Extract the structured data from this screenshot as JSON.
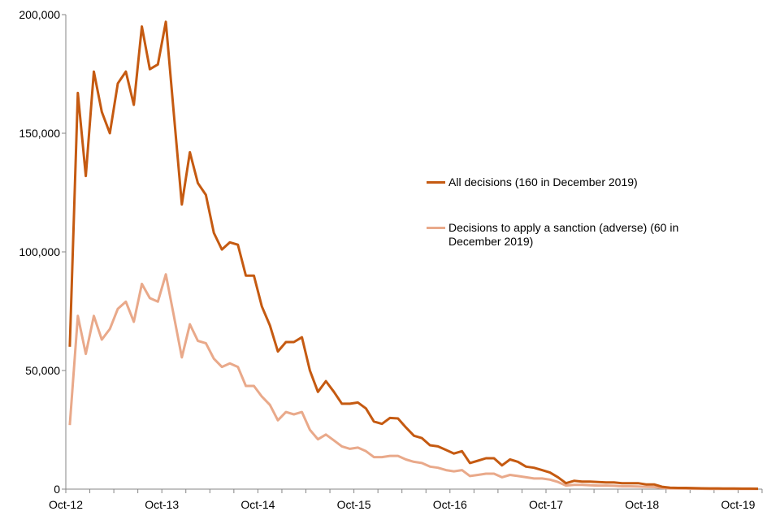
{
  "chart_data": {
    "type": "line",
    "title": "",
    "xlabel": "",
    "ylabel": "",
    "ylim": [
      0,
      200000
    ],
    "y_ticks": [
      0,
      50000,
      100000,
      150000,
      200000
    ],
    "y_tick_labels": [
      "0",
      "50,000",
      "100,000",
      "150,000",
      "200,000"
    ],
    "x_tick_labels": [
      "Oct-12",
      "Oct-13",
      "Oct-14",
      "Oct-15",
      "Oct-16",
      "Oct-17",
      "Oct-18",
      "Oct-19"
    ],
    "grid": false,
    "legend_placement": "center-right",
    "x": [
      "Oct-12",
      "Nov-12",
      "Dec-12",
      "Jan-13",
      "Feb-13",
      "Mar-13",
      "Apr-13",
      "May-13",
      "Jun-13",
      "Jul-13",
      "Aug-13",
      "Sep-13",
      "Oct-13",
      "Nov-13",
      "Dec-13",
      "Jan-14",
      "Feb-14",
      "Mar-14",
      "Apr-14",
      "May-14",
      "Jun-14",
      "Jul-14",
      "Aug-14",
      "Sep-14",
      "Oct-14",
      "Nov-14",
      "Dec-14",
      "Jan-15",
      "Feb-15",
      "Mar-15",
      "Apr-15",
      "May-15",
      "Jun-15",
      "Jul-15",
      "Aug-15",
      "Sep-15",
      "Oct-15",
      "Nov-15",
      "Dec-15",
      "Jan-16",
      "Feb-16",
      "Mar-16",
      "Apr-16",
      "May-16",
      "Jun-16",
      "Jul-16",
      "Aug-16",
      "Sep-16",
      "Oct-16",
      "Nov-16",
      "Dec-16",
      "Jan-17",
      "Feb-17",
      "Mar-17",
      "Apr-17",
      "May-17",
      "Jun-17",
      "Jul-17",
      "Aug-17",
      "Sep-17",
      "Oct-17",
      "Nov-17",
      "Dec-17",
      "Jan-18",
      "Feb-18",
      "Mar-18",
      "Apr-18",
      "May-18",
      "Jun-18",
      "Jul-18",
      "Aug-18",
      "Sep-18",
      "Oct-18",
      "Nov-18",
      "Dec-18",
      "Jan-19",
      "Feb-19",
      "Mar-19",
      "Apr-19",
      "May-19",
      "Jun-19",
      "Jul-19",
      "Aug-19",
      "Sep-19",
      "Oct-19",
      "Nov-19",
      "Dec-19"
    ],
    "series": [
      {
        "name": "All decisions (160 in December 2019)",
        "color": "#c55a11",
        "values": [
          60000,
          167000,
          132000,
          176000,
          159000,
          150000,
          171000,
          176000,
          162000,
          195000,
          177000,
          179000,
          197000,
          158000,
          120000,
          142000,
          129000,
          124000,
          108000,
          101000,
          104000,
          103000,
          90000,
          90000,
          77000,
          69000,
          58000,
          62000,
          62000,
          64000,
          50000,
          41000,
          45500,
          41000,
          36000,
          36000,
          36500,
          34000,
          28500,
          27500,
          30000,
          29800,
          26000,
          22500,
          21500,
          18500,
          18000,
          16500,
          15000,
          16000,
          11000,
          12000,
          13000,
          13000,
          10000,
          12500,
          11500,
          9500,
          9000,
          8000,
          7000,
          5000,
          2500,
          3500,
          3200,
          3200,
          3000,
          2800,
          2800,
          2500,
          2500,
          2500,
          2000,
          2000,
          1000,
          600,
          500,
          500,
          400,
          350,
          300,
          300,
          250,
          250,
          200,
          200,
          160
        ]
      },
      {
        "name": "Decisions to apply a sanction (adverse) (60 in December 2019)",
        "color": "#e9a98a",
        "values": [
          27000,
          73000,
          57000,
          73000,
          63000,
          67500,
          76000,
          79000,
          70500,
          86500,
          80500,
          79000,
          90500,
          73000,
          55500,
          69500,
          62500,
          61500,
          55000,
          51500,
          53000,
          51500,
          43500,
          43500,
          39000,
          35500,
          29000,
          32500,
          31500,
          32500,
          25000,
          21000,
          23000,
          20500,
          18000,
          17000,
          17500,
          16000,
          13500,
          13500,
          14000,
          14000,
          12500,
          11500,
          11000,
          9500,
          9000,
          8000,
          7500,
          8000,
          5500,
          6000,
          6500,
          6500,
          5000,
          6000,
          5500,
          5000,
          4500,
          4500,
          4000,
          3000,
          1500,
          1800,
          1800,
          1600,
          1500,
          1500,
          1400,
          1200,
          1200,
          1100,
          1000,
          900,
          500,
          300,
          250,
          200,
          150,
          120,
          100,
          100,
          90,
          80,
          70,
          65,
          60
        ]
      }
    ]
  }
}
